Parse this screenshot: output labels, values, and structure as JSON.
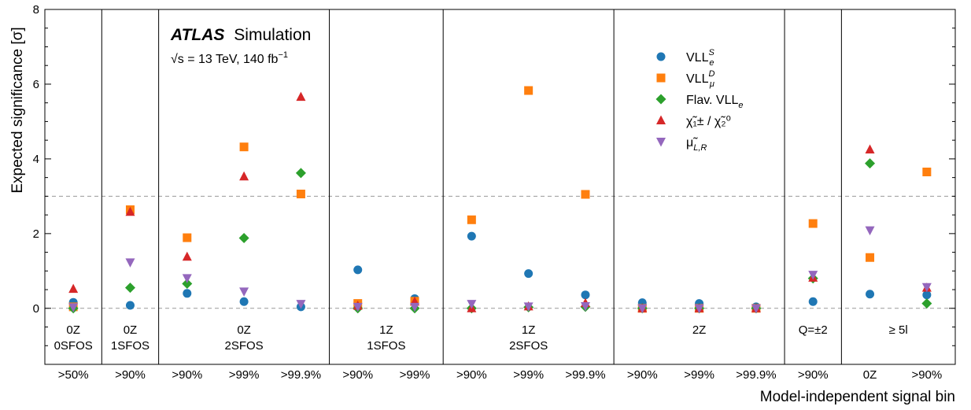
{
  "chart_data": {
    "type": "scatter",
    "ylabel": "Expected significance [σ]",
    "xlabel": "Model-independent signal bin",
    "ylim": [
      -1.5,
      8
    ],
    "yticks": [
      0,
      2,
      4,
      6,
      8
    ],
    "reference_lines": [
      0,
      3
    ],
    "atlas_label": {
      "bold": "ATLAS",
      "rest": "Simulation"
    },
    "energy_label": {
      "sqrt": "√s",
      "text": " = 13 TeV, 140 fb",
      "sup": "−1"
    },
    "legend_position": "top-right",
    "categories": [
      ">50%",
      ">90%",
      ">90%",
      ">99%",
      ">99.9%",
      ">90%",
      ">99%",
      ">90%",
      ">99%",
      ">99.9%",
      ">90%",
      ">99%",
      ">99.9%",
      ">90%",
      "0Z",
      ">90%"
    ],
    "groups": [
      {
        "lines": [
          "0Z",
          "0SFOS"
        ],
        "bins": [
          0
        ]
      },
      {
        "lines": [
          "0Z",
          "1SFOS"
        ],
        "bins": [
          1
        ]
      },
      {
        "lines": [
          "0Z",
          "2SFOS"
        ],
        "bins": [
          2,
          3,
          4
        ]
      },
      {
        "lines": [
          "1Z",
          "1SFOS"
        ],
        "bins": [
          5,
          6
        ]
      },
      {
        "lines": [
          "1Z",
          "2SFOS"
        ],
        "bins": [
          7,
          8,
          9
        ]
      },
      {
        "lines": [
          "2Z"
        ],
        "bins": [
          10,
          11,
          12
        ]
      },
      {
        "lines": [
          "Q=±2"
        ],
        "bins": [
          13
        ]
      },
      {
        "lines": [
          "≥ 5l"
        ],
        "bins": [
          14,
          15
        ]
      }
    ],
    "series": [
      {
        "name": "VLL",
        "sub": "e",
        "sup": "S",
        "marker": "circle",
        "color": "#1f77b4",
        "values": [
          0.16,
          0.08,
          0.4,
          0.18,
          0.04,
          1.03,
          0.26,
          1.93,
          0.93,
          0.36,
          0.15,
          0.13,
          0.04,
          0.18,
          0.38,
          0.36
        ]
      },
      {
        "name": "VLL",
        "sub": "μ",
        "sup": "D",
        "marker": "square",
        "color": "#ff7f0e",
        "values": [
          0.04,
          2.64,
          1.89,
          4.32,
          3.06,
          0.13,
          0.19,
          2.37,
          5.83,
          3.05,
          0.0,
          0.0,
          0.0,
          2.27,
          1.36,
          3.65
        ]
      },
      {
        "name": "Flav. VLL",
        "sub": "e",
        "sup": "",
        "marker": "diamond",
        "color": "#2ca02c",
        "values": [
          0.0,
          0.55,
          0.66,
          1.88,
          3.62,
          0.0,
          0.0,
          0.0,
          0.03,
          0.04,
          0.0,
          0.0,
          0.0,
          0.8,
          3.88,
          0.13
        ]
      },
      {
        "name": "χ̃₁± / χ̃₂⁰",
        "sub": "",
        "sup": "",
        "marker": "triangle-up",
        "color": "#d62728",
        "values": [
          0.52,
          2.58,
          1.38,
          3.53,
          5.66,
          0.07,
          0.18,
          0.0,
          0.05,
          0.14,
          0.0,
          0.0,
          0.0,
          0.82,
          4.25,
          0.55
        ]
      },
      {
        "name": "μ̃",
        "sub": "L,R",
        "sup": "",
        "marker": "triangle-down",
        "color": "#9467bd",
        "values": [
          0.03,
          1.23,
          0.81,
          0.45,
          0.12,
          0.04,
          0.04,
          0.12,
          0.05,
          0.06,
          0.0,
          0.0,
          0.0,
          0.9,
          2.09,
          0.57
        ]
      }
    ]
  }
}
